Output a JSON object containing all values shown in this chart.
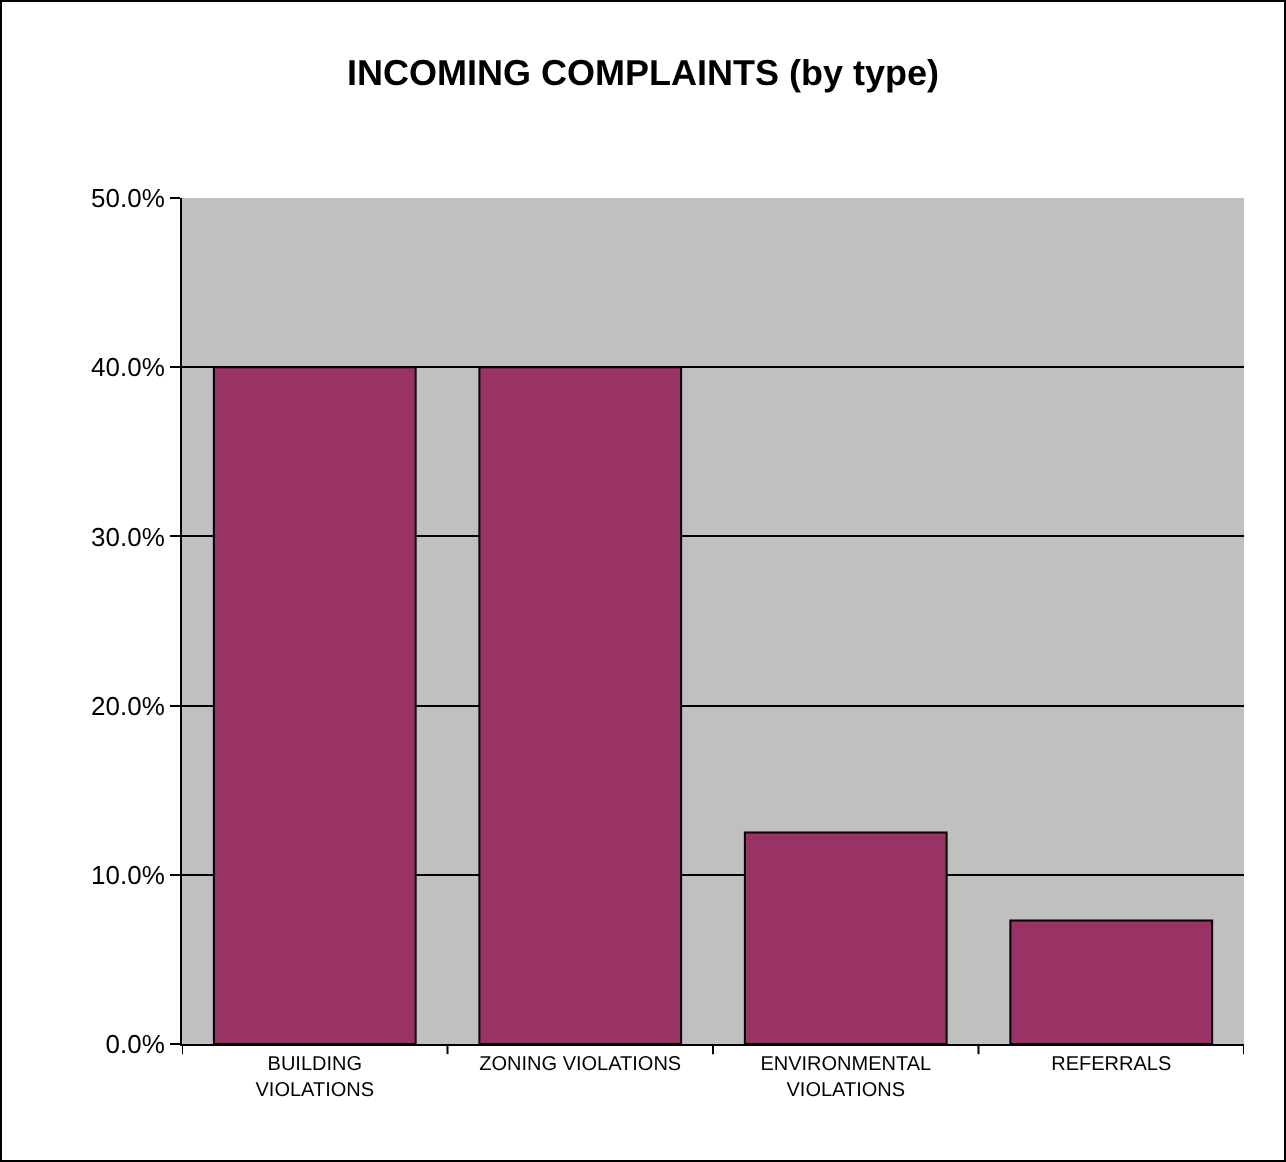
{
  "chart_data": {
    "type": "bar",
    "title": "INCOMING COMPLAINTS (by type)",
    "categories": [
      "BUILDING VIOLATIONS",
      "ZONING VIOLATIONS",
      "ENVIRONMENTAL VIOLATIONS",
      "REFERRALS"
    ],
    "values": [
      40,
      40,
      12.5,
      7.3
    ],
    "color": "#993366",
    "ylim": [
      0,
      50
    ],
    "yticks": [
      {
        "value": 0,
        "label": "0.0%"
      },
      {
        "value": 10,
        "label": "10.0%"
      },
      {
        "value": 20,
        "label": "20.0%"
      },
      {
        "value": 30,
        "label": "30.0%"
      },
      {
        "value": 40,
        "label": "40.0%"
      },
      {
        "value": 50,
        "label": "50.0%"
      }
    ],
    "grid": "y"
  }
}
